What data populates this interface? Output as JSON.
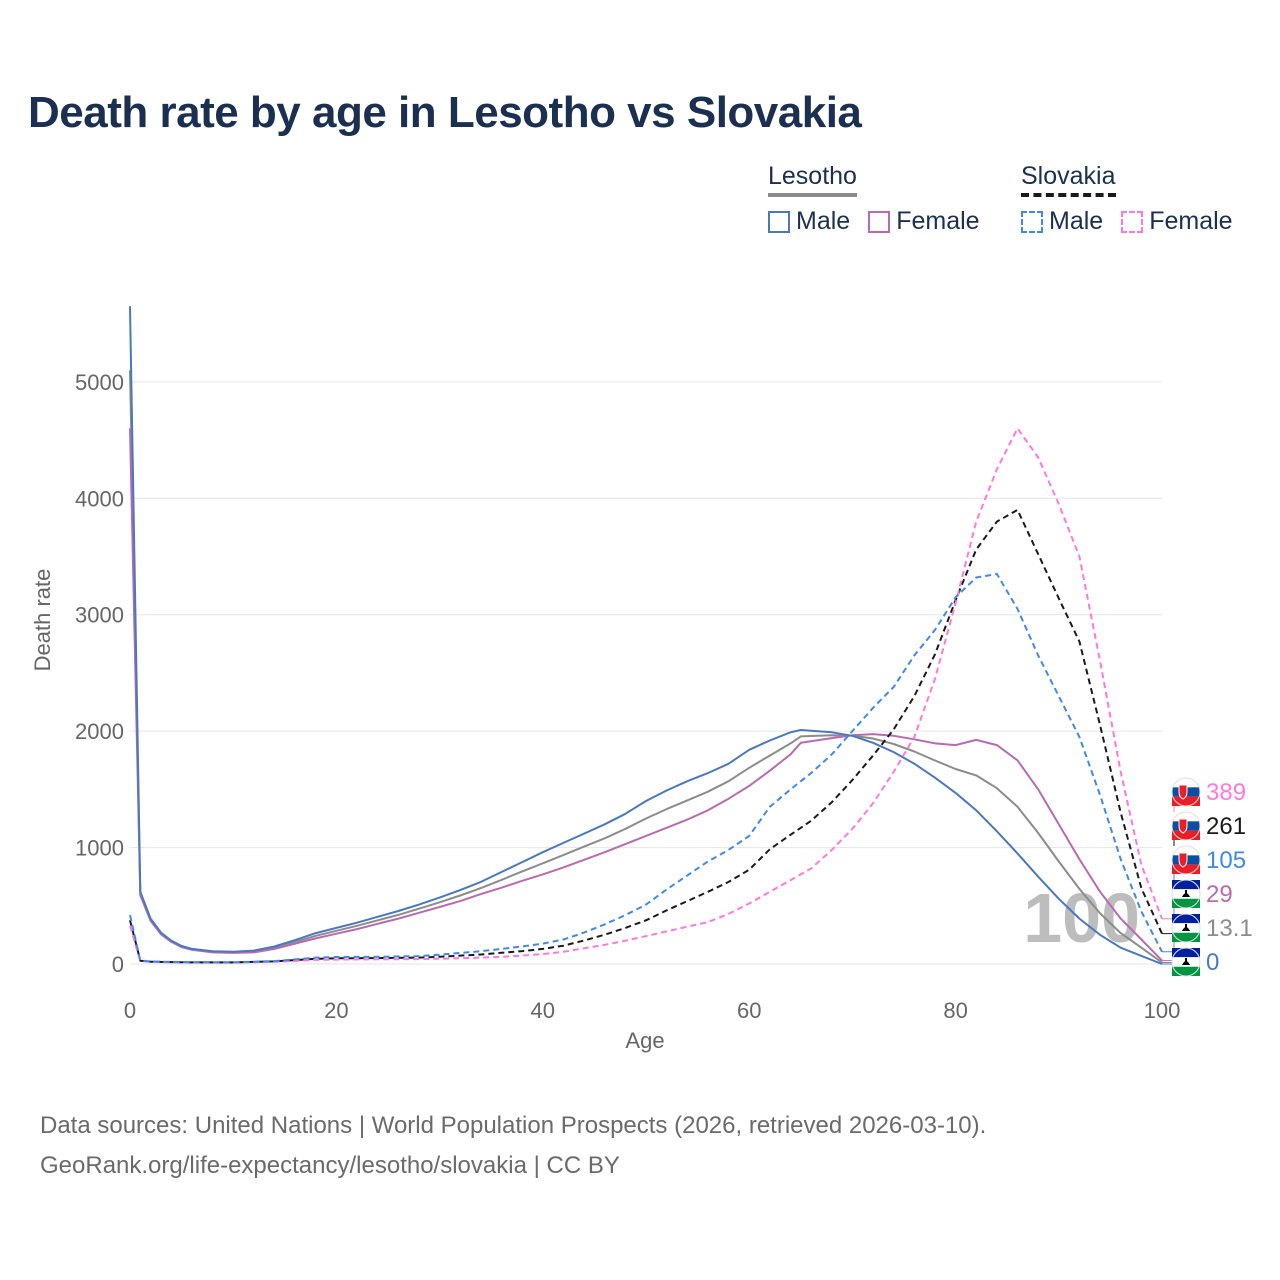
{
  "chart_data": {
    "type": "line",
    "title": "Death rate by age in Lesotho vs Slovakia",
    "xlabel": "Age",
    "ylabel": "Death rate",
    "xlim": [
      0,
      100
    ],
    "ylim": [
      0,
      5600
    ],
    "x_ticks": [
      "0",
      "20",
      "40",
      "60",
      "80",
      "100"
    ],
    "y_ticks": [
      "0",
      "1000",
      "2000",
      "3000",
      "4000",
      "5000"
    ],
    "grid": true,
    "watermark_year": "100",
    "legend": {
      "groups": [
        {
          "country": "Lesotho",
          "items": [
            "Male",
            "Female"
          ]
        },
        {
          "country": "Slovakia",
          "items": [
            "Male",
            "Female"
          ]
        }
      ]
    },
    "colors": {
      "lesotho_male": "#4a78c0",
      "lesotho_female": "#b86bb0",
      "lesotho_total": "#8c8c8c",
      "slovakia_male": "#3f8ae8",
      "slovakia_female": "#ff78e0",
      "slovakia_total": "#1a1a1a"
    },
    "series": [
      {
        "name": "Lesotho Male",
        "country": "Lesotho",
        "style": "solid",
        "color": "#4a78c0",
        "points": [
          [
            0,
            5650
          ],
          [
            1,
            620
          ],
          [
            2,
            390
          ],
          [
            3,
            270
          ],
          [
            4,
            200
          ],
          [
            5,
            155
          ],
          [
            6,
            130
          ],
          [
            8,
            110
          ],
          [
            10,
            105
          ],
          [
            12,
            115
          ],
          [
            14,
            150
          ],
          [
            16,
            205
          ],
          [
            18,
            265
          ],
          [
            20,
            310
          ],
          [
            22,
            355
          ],
          [
            24,
            405
          ],
          [
            26,
            455
          ],
          [
            28,
            510
          ],
          [
            30,
            570
          ],
          [
            32,
            635
          ],
          [
            34,
            705
          ],
          [
            36,
            790
          ],
          [
            38,
            875
          ],
          [
            40,
            960
          ],
          [
            42,
            1040
          ],
          [
            44,
            1120
          ],
          [
            46,
            1200
          ],
          [
            48,
            1290
          ],
          [
            50,
            1400
          ],
          [
            52,
            1490
          ],
          [
            54,
            1570
          ],
          [
            56,
            1640
          ],
          [
            58,
            1720
          ],
          [
            60,
            1840
          ],
          [
            62,
            1920
          ],
          [
            64,
            1990
          ],
          [
            65,
            2010
          ],
          [
            68,
            1990
          ],
          [
            70,
            1960
          ],
          [
            72,
            1900
          ],
          [
            74,
            1820
          ],
          [
            76,
            1720
          ],
          [
            78,
            1600
          ],
          [
            80,
            1470
          ],
          [
            82,
            1320
          ],
          [
            84,
            1140
          ],
          [
            86,
            950
          ],
          [
            88,
            750
          ],
          [
            90,
            560
          ],
          [
            92,
            390
          ],
          [
            94,
            250
          ],
          [
            96,
            140
          ],
          [
            98,
            70
          ],
          [
            100,
            0
          ]
        ],
        "end_value": "0"
      },
      {
        "name": "Lesotho Female",
        "country": "Lesotho",
        "style": "solid",
        "color": "#b86bb0",
        "points": [
          [
            0,
            4600
          ],
          [
            1,
            590
          ],
          [
            2,
            370
          ],
          [
            3,
            255
          ],
          [
            4,
            190
          ],
          [
            5,
            145
          ],
          [
            6,
            122
          ],
          [
            8,
            100
          ],
          [
            10,
            95
          ],
          [
            12,
            100
          ],
          [
            14,
            130
          ],
          [
            16,
            175
          ],
          [
            18,
            220
          ],
          [
            20,
            260
          ],
          [
            22,
            300
          ],
          [
            24,
            345
          ],
          [
            26,
            390
          ],
          [
            28,
            440
          ],
          [
            30,
            490
          ],
          [
            32,
            540
          ],
          [
            34,
            600
          ],
          [
            36,
            655
          ],
          [
            38,
            715
          ],
          [
            40,
            770
          ],
          [
            42,
            830
          ],
          [
            44,
            895
          ],
          [
            46,
            960
          ],
          [
            48,
            1030
          ],
          [
            50,
            1100
          ],
          [
            52,
            1170
          ],
          [
            54,
            1240
          ],
          [
            56,
            1320
          ],
          [
            58,
            1420
          ],
          [
            60,
            1530
          ],
          [
            62,
            1660
          ],
          [
            64,
            1800
          ],
          [
            65,
            1900
          ],
          [
            68,
            1940
          ],
          [
            70,
            1965
          ],
          [
            72,
            1975
          ],
          [
            74,
            1960
          ],
          [
            76,
            1930
          ],
          [
            78,
            1895
          ],
          [
            80,
            1880
          ],
          [
            82,
            1925
          ],
          [
            84,
            1880
          ],
          [
            86,
            1750
          ],
          [
            88,
            1500
          ],
          [
            90,
            1200
          ],
          [
            92,
            900
          ],
          [
            94,
            620
          ],
          [
            96,
            390
          ],
          [
            98,
            210
          ],
          [
            100,
            29
          ]
        ],
        "end_value": "29"
      },
      {
        "name": "Lesotho Total",
        "country": "Lesotho",
        "style": "solid",
        "color": "#8c8c8c",
        "points": [
          [
            0,
            5100
          ],
          [
            1,
            605
          ],
          [
            2,
            380
          ],
          [
            3,
            262
          ],
          [
            4,
            195
          ],
          [
            5,
            150
          ],
          [
            6,
            126
          ],
          [
            8,
            105
          ],
          [
            10,
            100
          ],
          [
            12,
            108
          ],
          [
            14,
            140
          ],
          [
            16,
            190
          ],
          [
            18,
            242
          ],
          [
            20,
            285
          ],
          [
            22,
            328
          ],
          [
            24,
            375
          ],
          [
            26,
            422
          ],
          [
            28,
            475
          ],
          [
            30,
            530
          ],
          [
            32,
            588
          ],
          [
            34,
            652
          ],
          [
            36,
            722
          ],
          [
            38,
            795
          ],
          [
            40,
            865
          ],
          [
            42,
            935
          ],
          [
            44,
            1008
          ],
          [
            46,
            1080
          ],
          [
            48,
            1160
          ],
          [
            50,
            1250
          ],
          [
            52,
            1330
          ],
          [
            54,
            1405
          ],
          [
            56,
            1480
          ],
          [
            58,
            1570
          ],
          [
            60,
            1685
          ],
          [
            62,
            1790
          ],
          [
            64,
            1895
          ],
          [
            65,
            1955
          ],
          [
            68,
            1965
          ],
          [
            70,
            1962
          ],
          [
            72,
            1937
          ],
          [
            74,
            1890
          ],
          [
            76,
            1825
          ],
          [
            78,
            1748
          ],
          [
            80,
            1675
          ],
          [
            82,
            1620
          ],
          [
            84,
            1510
          ],
          [
            86,
            1350
          ],
          [
            88,
            1125
          ],
          [
            90,
            880
          ],
          [
            92,
            645
          ],
          [
            94,
            435
          ],
          [
            96,
            265
          ],
          [
            98,
            140
          ],
          [
            100,
            13.1
          ]
        ],
        "end_value": "13.1"
      },
      {
        "name": "Slovakia Male",
        "country": "Slovakia",
        "style": "dashed",
        "color": "#3f8ae8",
        "points": [
          [
            0,
            420
          ],
          [
            1,
            30
          ],
          [
            2,
            22
          ],
          [
            4,
            18
          ],
          [
            6,
            16
          ],
          [
            10,
            15
          ],
          [
            14,
            25
          ],
          [
            18,
            55
          ],
          [
            20,
            60
          ],
          [
            24,
            62
          ],
          [
            28,
            68
          ],
          [
            30,
            80
          ],
          [
            34,
            110
          ],
          [
            36,
            130
          ],
          [
            38,
            150
          ],
          [
            40,
            175
          ],
          [
            42,
            210
          ],
          [
            44,
            270
          ],
          [
            46,
            340
          ],
          [
            48,
            420
          ],
          [
            50,
            510
          ],
          [
            52,
            640
          ],
          [
            54,
            760
          ],
          [
            56,
            880
          ],
          [
            58,
            980
          ],
          [
            60,
            1100
          ],
          [
            62,
            1350
          ],
          [
            64,
            1500
          ],
          [
            66,
            1640
          ],
          [
            68,
            1800
          ],
          [
            70,
            2000
          ],
          [
            72,
            2200
          ],
          [
            74,
            2380
          ],
          [
            76,
            2650
          ],
          [
            78,
            2870
          ],
          [
            80,
            3150
          ],
          [
            82,
            3320
          ],
          [
            84,
            3350
          ],
          [
            86,
            3050
          ],
          [
            88,
            2650
          ],
          [
            90,
            2300
          ],
          [
            92,
            1950
          ],
          [
            94,
            1450
          ],
          [
            96,
            900
          ],
          [
            98,
            450
          ],
          [
            100,
            105
          ]
        ],
        "end_value": "105"
      },
      {
        "name": "Slovakia Female",
        "country": "Slovakia",
        "style": "dashed",
        "color": "#ff78e0",
        "points": [
          [
            0,
            330
          ],
          [
            1,
            25
          ],
          [
            2,
            18
          ],
          [
            4,
            14
          ],
          [
            6,
            12
          ],
          [
            10,
            12
          ],
          [
            14,
            18
          ],
          [
            18,
            35
          ],
          [
            20,
            38
          ],
          [
            24,
            40
          ],
          [
            28,
            42
          ],
          [
            30,
            45
          ],
          [
            34,
            55
          ],
          [
            36,
            62
          ],
          [
            38,
            72
          ],
          [
            40,
            85
          ],
          [
            42,
            105
          ],
          [
            44,
            135
          ],
          [
            46,
            165
          ],
          [
            48,
            200
          ],
          [
            50,
            240
          ],
          [
            52,
            280
          ],
          [
            54,
            320
          ],
          [
            56,
            360
          ],
          [
            58,
            430
          ],
          [
            60,
            520
          ],
          [
            62,
            620
          ],
          [
            64,
            720
          ],
          [
            66,
            820
          ],
          [
            68,
            980
          ],
          [
            70,
            1160
          ],
          [
            72,
            1380
          ],
          [
            74,
            1650
          ],
          [
            76,
            1950
          ],
          [
            78,
            2450
          ],
          [
            80,
            3100
          ],
          [
            82,
            3800
          ],
          [
            84,
            4250
          ],
          [
            86,
            4600
          ],
          [
            88,
            4350
          ],
          [
            90,
            3950
          ],
          [
            92,
            3500
          ],
          [
            94,
            2600
          ],
          [
            96,
            1650
          ],
          [
            98,
            850
          ],
          [
            100,
            389
          ]
        ],
        "end_value": "389"
      },
      {
        "name": "Slovakia Total",
        "country": "Slovakia",
        "style": "dashed",
        "color": "#1a1a1a",
        "points": [
          [
            0,
            375
          ],
          [
            1,
            28
          ],
          [
            2,
            20
          ],
          [
            4,
            16
          ],
          [
            6,
            14
          ],
          [
            10,
            14
          ],
          [
            14,
            22
          ],
          [
            18,
            45
          ],
          [
            20,
            49
          ],
          [
            24,
            51
          ],
          [
            28,
            55
          ],
          [
            30,
            62
          ],
          [
            34,
            82
          ],
          [
            36,
            96
          ],
          [
            38,
            111
          ],
          [
            40,
            130
          ],
          [
            42,
            157
          ],
          [
            44,
            202
          ],
          [
            46,
            252
          ],
          [
            48,
            310
          ],
          [
            50,
            375
          ],
          [
            52,
            460
          ],
          [
            54,
            540
          ],
          [
            56,
            620
          ],
          [
            58,
            705
          ],
          [
            60,
            810
          ],
          [
            62,
            985
          ],
          [
            64,
            1110
          ],
          [
            66,
            1230
          ],
          [
            68,
            1390
          ],
          [
            70,
            1580
          ],
          [
            72,
            1790
          ],
          [
            74,
            2015
          ],
          [
            76,
            2300
          ],
          [
            78,
            2660
          ],
          [
            80,
            3125
          ],
          [
            82,
            3560
          ],
          [
            84,
            3800
          ],
          [
            86,
            3900
          ],
          [
            88,
            3520
          ],
          [
            90,
            3140
          ],
          [
            92,
            2770
          ],
          [
            94,
            2050
          ],
          [
            96,
            1300
          ],
          [
            98,
            650
          ],
          [
            100,
            261
          ]
        ],
        "end_value": "261"
      }
    ]
  }
}
